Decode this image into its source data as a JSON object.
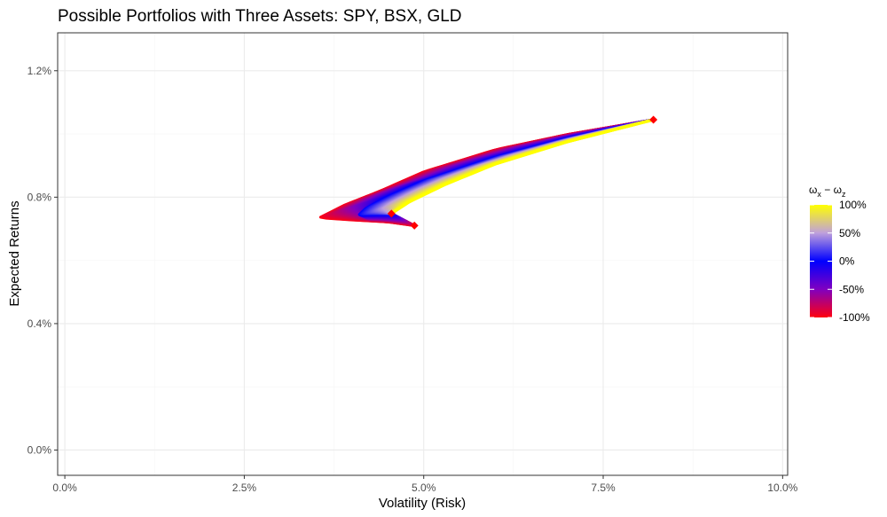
{
  "chart_data": {
    "type": "scatter",
    "title": "Possible Portfolios with Three Assets: SPY, BSX, GLD",
    "xlabel": "Volatility (Risk)",
    "ylabel": "Expected Returns",
    "xlim": [
      -0.001,
      0.1007
    ],
    "ylim": [
      -0.0008,
      0.0132
    ],
    "x_ticks": [
      0.0,
      0.025,
      0.05,
      0.075,
      0.1
    ],
    "x_tick_labels": [
      "0.0%",
      "2.5%",
      "5.0%",
      "7.5%",
      "10.0%"
    ],
    "y_ticks": [
      0.0,
      0.004,
      0.008,
      0.012
    ],
    "y_tick_labels": [
      "0.0%",
      "0.4%",
      "0.8%",
      "1.2%"
    ],
    "grid": true,
    "legend": {
      "placement": "right",
      "title_parts": {
        "symbol": "ω",
        "sub1": "x",
        "op": " − ",
        "sub2": "z"
      },
      "entries": [
        "100%",
        "50%",
        "0%",
        "-50%",
        "-100%"
      ],
      "entry_values": [
        1.0,
        0.5,
        0.0,
        -0.5,
        -1.0
      ],
      "gradient_colors": [
        "#ffff00",
        "#bfa0dc",
        "#0000ff",
        "#8000c0",
        "#ff0010"
      ]
    },
    "assets": [
      {
        "volatility": 0.082,
        "return": 0.01045,
        "color": "#ff0000"
      },
      {
        "volatility": 0.0455,
        "return": 0.00748,
        "color": "#ff0000"
      },
      {
        "volatility": 0.0487,
        "return": 0.0071,
        "color": "#ff0000"
      }
    ],
    "region_rays": [
      {
        "weight_diff": -1.0,
        "points": [
          [
            0.082,
            0.01045
          ],
          [
            0.07,
            0.00998
          ],
          [
            0.06,
            0.0095
          ],
          [
            0.05,
            0.0088
          ],
          [
            0.044,
            0.0082
          ],
          [
            0.039,
            0.00775
          ],
          [
            0.0355,
            0.00735
          ],
          [
            0.04,
            0.00728
          ],
          [
            0.045,
            0.00722
          ],
          [
            0.0487,
            0.0071
          ]
        ]
      },
      {
        "weight_diff": 0.0,
        "points": [
          [
            0.082,
            0.01045
          ],
          [
            0.07,
            0.00985
          ],
          [
            0.06,
            0.00925
          ],
          [
            0.05,
            0.0085
          ],
          [
            0.045,
            0.008
          ],
          [
            0.042,
            0.00765
          ],
          [
            0.041,
            0.00745
          ],
          [
            0.0455,
            0.00748
          ]
        ]
      },
      {
        "weight_diff": 1.0,
        "points": [
          [
            0.082,
            0.01045
          ],
          [
            0.07,
            0.00975
          ],
          [
            0.06,
            0.00905
          ],
          [
            0.053,
            0.0084
          ],
          [
            0.048,
            0.00785
          ],
          [
            0.0455,
            0.00748
          ]
        ]
      }
    ]
  }
}
